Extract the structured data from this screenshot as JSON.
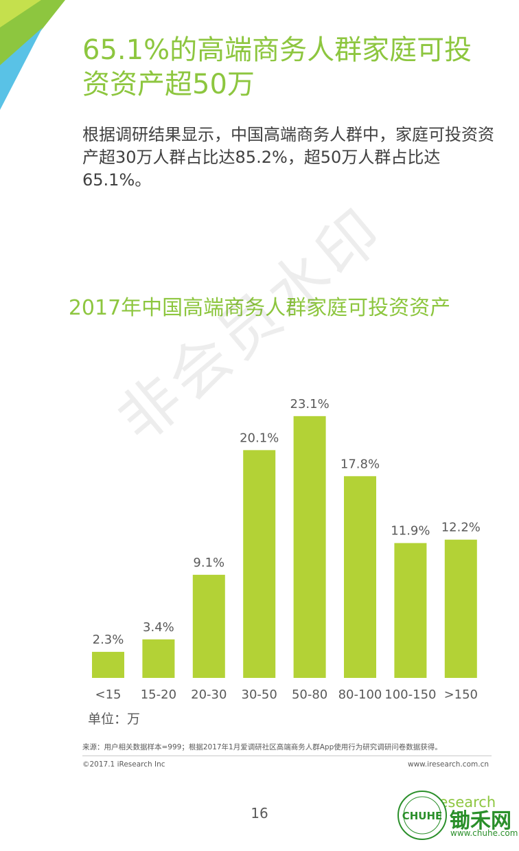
{
  "headline": "65.1%的高端商务人群家庭可投资资产超50万",
  "intro": "根据调研结果显示，中国高端商务人群中，家庭可投资资产超30万人群占比达85.2%，超50万人群占比达65.1%。",
  "watermark": "非会员水印",
  "chart_data": {
    "type": "bar",
    "title": "2017年中国高端商务人群家庭可投资资产",
    "categories": [
      "<15",
      "15-20",
      "20-30",
      "30-50",
      "50-80",
      "80-100",
      "100-150",
      ">150"
    ],
    "values": [
      2.3,
      3.4,
      9.1,
      20.1,
      23.1,
      17.8,
      11.9,
      12.2
    ],
    "data_labels": [
      "2.3%",
      "3.4%",
      "9.1%",
      "20.1%",
      "23.1%",
      "17.8%",
      "11.9%",
      "12.2%"
    ],
    "unit_label": "单位：万",
    "ylim": [
      0,
      25
    ],
    "grid": false,
    "bar_color": "#b3d236"
  },
  "footer": {
    "source": "来源：用户相关数据样本=999；根据2017年1月爱调研社区高端商务人群App使用行为研究调研问卷数据获得。",
    "copyright": "©2017.1 iResearch Inc",
    "website": "www.iresearch.com.cn",
    "page_number": "16",
    "brand": "iResearch"
  },
  "watermark_site": {
    "name": "锄禾网",
    "url": "www.chuhe.com",
    "logo_text": "CHUHE"
  },
  "colors": {
    "accent": "#8dc63f",
    "corner_light": "#c5e04d",
    "corner_green": "#7ac143",
    "corner_blue": "#59c2e6"
  }
}
